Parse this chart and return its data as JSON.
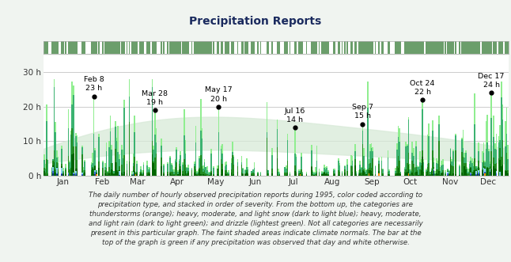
{
  "title": "Precipitation Reports",
  "yticks": [
    0,
    10,
    20,
    30
  ],
  "ylim": [
    0,
    35
  ],
  "month_labels": [
    "Jan",
    "Feb",
    "Mar",
    "Apr",
    "May",
    "Jun",
    "Jul",
    "Aug",
    "Sep",
    "Oct",
    "Nov",
    "Dec"
  ],
  "month_starts": [
    0,
    31,
    59,
    90,
    120,
    151,
    181,
    212,
    243,
    273,
    304,
    334
  ],
  "annotations": [
    {
      "day": 39,
      "value": 23,
      "label": "Feb 8\n23 h"
    },
    {
      "day": 87,
      "value": 19,
      "label": "Mar 28\n19 h"
    },
    {
      "day": 137,
      "value": 20,
      "label": "May 17\n20 h"
    },
    {
      "day": 197,
      "value": 14,
      "label": "Jul 16\n14 h"
    },
    {
      "day": 250,
      "value": 15,
      "label": "Sep 7\n15 h"
    },
    {
      "day": 297,
      "value": 22,
      "label": "Oct 24\n22 h"
    },
    {
      "day": 351,
      "value": 24,
      "label": "Dec 17\n24 h"
    }
  ],
  "colors": {
    "background": "#f0f4f0",
    "plot_bg": "#ffffff",
    "grid": "#cccccc",
    "climate_fill": "#d8ead8",
    "heavy_rain": "#006400",
    "mod_rain": "#228B22",
    "light_rain": "#3CB371",
    "drizzle": "#90EE90",
    "heavy_snow": "#1a3a8a",
    "mod_snow": "#4169E1",
    "light_snow": "#87CEEB",
    "thunder": "#FF8C00",
    "top_bar_green": "#6b9e6b",
    "top_bar_white": "#ffffff",
    "top_bar_border": "#aaaaaa"
  },
  "caption": "The daily number of hourly observed precipitation reports during 1995, color coded according to\nprecipitation type, and stacked in order of severity. From the bottom up, the categories are\nthunderstorms (orange); heavy, moderate, and light snow (dark to light blue); heavy, moderate,\nand light rain (dark to light green); and drizzle (lightest green). Not all categories are necessarily\npresent in this particular graph. The faint shaded areas indicate climate normals. The bar at the\ntop of the graph is green if any precipitation was observed that day and white otherwise."
}
